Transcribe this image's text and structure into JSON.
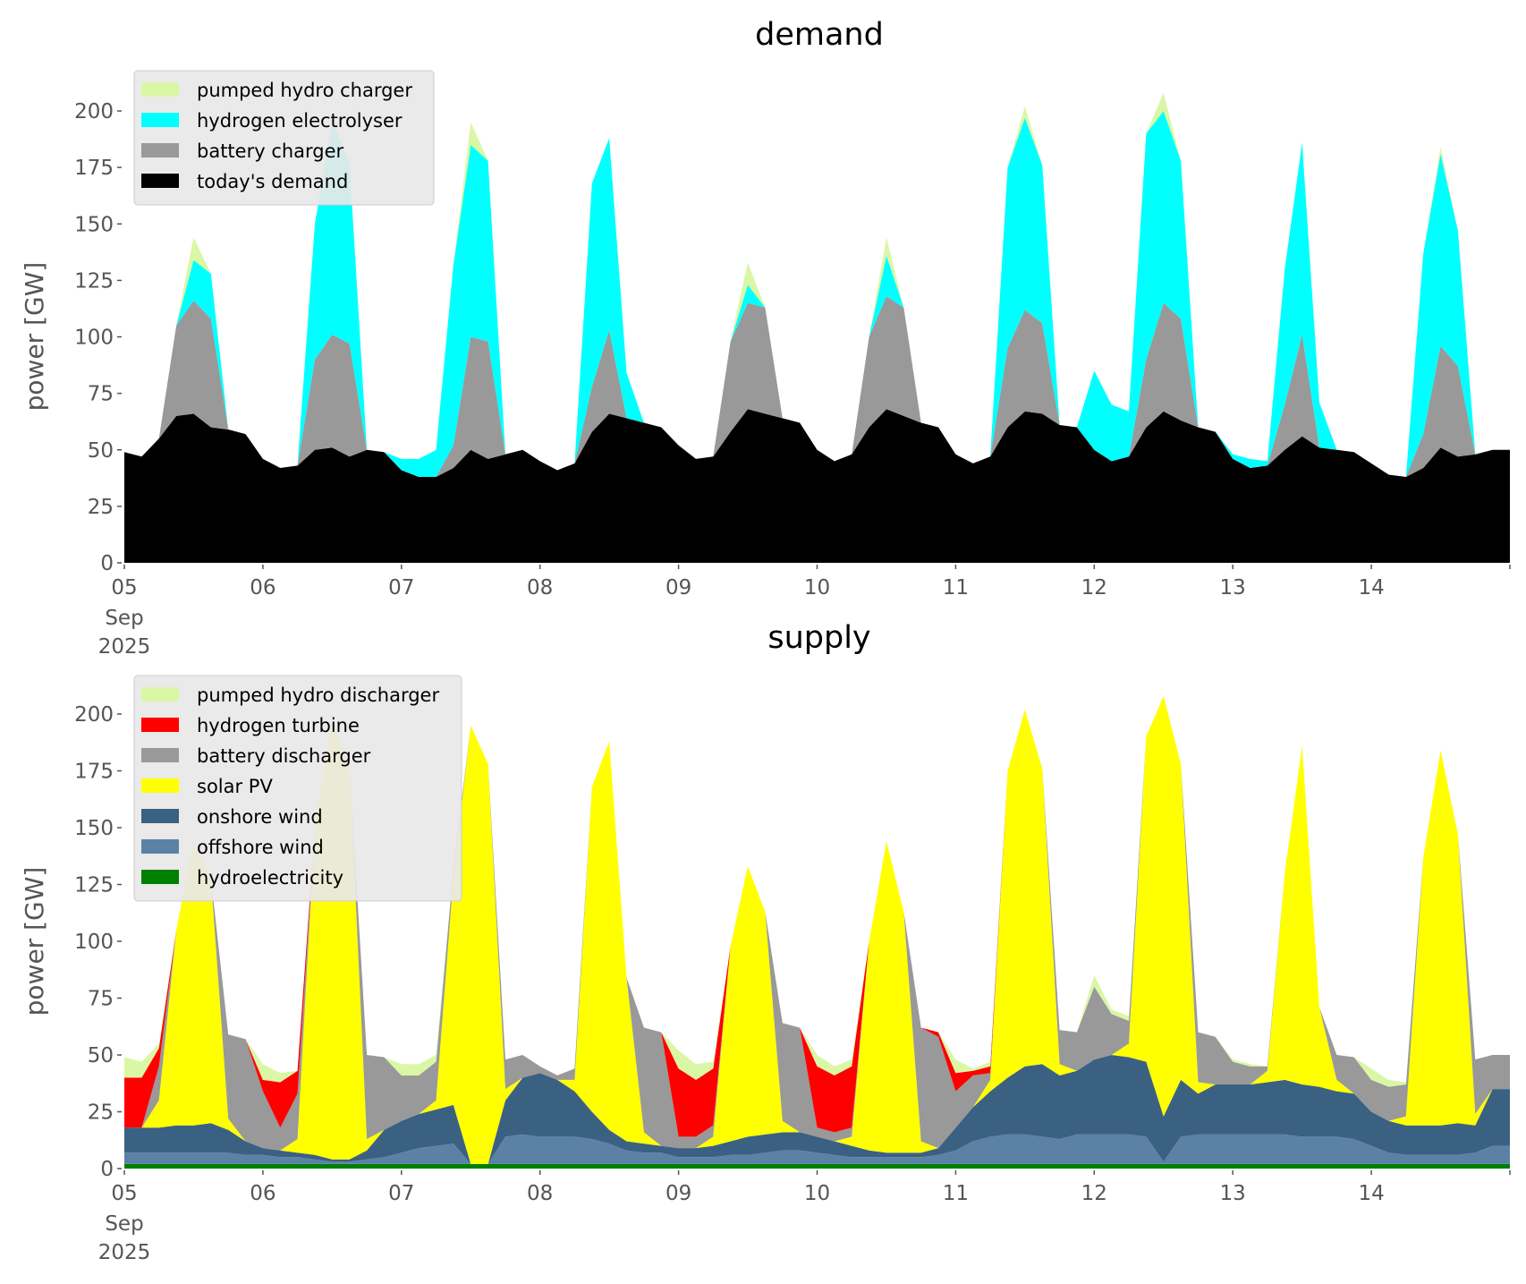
{
  "chart_data": [
    {
      "type": "area",
      "stacked": true,
      "title": "demand",
      "ylabel": "power [GW]",
      "xlabel": "",
      "ylim": [
        0,
        215
      ],
      "yticks": [
        0,
        25,
        50,
        75,
        100,
        125,
        150,
        175,
        200
      ],
      "xticks": [
        "05",
        "06",
        "07",
        "08",
        "09",
        "10",
        "11",
        "12",
        "13",
        "14"
      ],
      "xtick_sub": [
        "Sep",
        "2025"
      ],
      "start": "2025-09-05 00:00",
      "step_hours": 3,
      "legend_position": "top-left",
      "series": [
        {
          "name": "today's demand",
          "color": "#000000",
          "values": [
            49,
            47,
            55,
            65,
            66,
            60,
            59,
            57,
            46,
            42,
            43,
            50,
            51,
            47,
            50,
            49,
            41,
            38,
            38,
            42,
            50,
            46,
            48,
            50,
            45,
            41,
            44,
            58,
            66,
            64,
            62,
            60,
            52,
            46,
            47,
            58,
            68,
            66,
            64,
            62,
            50,
            45,
            48,
            60,
            68,
            65,
            62,
            60,
            48,
            44,
            47,
            60,
            67,
            66,
            61,
            60,
            50,
            45,
            47,
            60,
            67,
            63,
            60,
            58,
            46,
            42,
            43,
            50,
            56,
            51,
            50,
            49,
            44,
            39,
            38,
            42,
            51,
            47,
            48,
            50
          ]
        },
        {
          "name": "battery charger",
          "color": "#999999",
          "values": [
            0,
            0,
            0,
            40,
            50,
            48,
            0,
            0,
            0,
            0,
            0,
            40,
            50,
            50,
            0,
            0,
            0,
            0,
            0,
            10,
            50,
            52,
            0,
            0,
            0,
            0,
            0,
            20,
            37,
            0,
            0,
            0,
            0,
            0,
            0,
            40,
            47,
            47,
            0,
            0,
            0,
            0,
            0,
            40,
            50,
            48,
            0,
            0,
            0,
            0,
            0,
            35,
            45,
            40,
            0,
            0,
            0,
            0,
            0,
            30,
            48,
            45,
            0,
            0,
            0,
            0,
            0,
            20,
            45,
            0,
            0,
            0,
            0,
            0,
            0,
            15,
            45,
            40,
            0,
            0
          ]
        },
        {
          "name": "hydrogen electrolyser",
          "color": "#00ffff",
          "values": [
            0,
            0,
            0,
            0,
            18,
            20,
            0,
            0,
            0,
            0,
            0,
            60,
            95,
            80,
            0,
            0,
            5,
            8,
            12,
            80,
            85,
            80,
            0,
            0,
            0,
            0,
            0,
            90,
            85,
            20,
            0,
            0,
            0,
            0,
            0,
            0,
            8,
            0,
            0,
            0,
            0,
            0,
            0,
            0,
            18,
            0,
            0,
            0,
            0,
            0,
            0,
            80,
            85,
            70,
            0,
            0,
            35,
            25,
            20,
            100,
            85,
            70,
            0,
            0,
            2,
            4,
            2,
            60,
            85,
            20,
            0,
            0,
            0,
            0,
            0,
            80,
            85,
            60,
            0,
            0
          ]
        },
        {
          "name": "pumped hydro charger",
          "color": "#daf7a6",
          "values": [
            0,
            0,
            0,
            0,
            10,
            0,
            0,
            0,
            0,
            0,
            0,
            0,
            2,
            0,
            0,
            0,
            0,
            0,
            0,
            0,
            10,
            0,
            0,
            0,
            0,
            0,
            0,
            0,
            0,
            0,
            0,
            0,
            0,
            0,
            0,
            0,
            10,
            0,
            0,
            0,
            0,
            0,
            0,
            0,
            8,
            0,
            0,
            0,
            0,
            0,
            0,
            0,
            5,
            0,
            0,
            0,
            0,
            0,
            0,
            0,
            8,
            0,
            0,
            0,
            0,
            0,
            0,
            0,
            0,
            0,
            0,
            0,
            0,
            0,
            0,
            0,
            3,
            0,
            0,
            0
          ]
        }
      ]
    },
    {
      "type": "area",
      "stacked": true,
      "title": "supply",
      "ylabel": "power [GW]",
      "xlabel": "",
      "ylim": [
        0,
        215
      ],
      "yticks": [
        0,
        25,
        50,
        75,
        100,
        125,
        150,
        175,
        200
      ],
      "xticks": [
        "05",
        "06",
        "07",
        "08",
        "09",
        "10",
        "11",
        "12",
        "13",
        "14"
      ],
      "xtick_sub": [
        "Sep",
        "2025"
      ],
      "start": "2025-09-05 00:00",
      "step_hours": 3,
      "legend_position": "top-left",
      "series": [
        {
          "name": "hydroelectricity",
          "color": "#008000",
          "values": [
            2,
            2,
            2,
            2,
            2,
            2,
            2,
            2,
            2,
            2,
            2,
            2,
            2,
            2,
            2,
            2,
            2,
            2,
            2,
            2,
            2,
            2,
            2,
            2,
            2,
            2,
            2,
            2,
            2,
            2,
            2,
            2,
            2,
            2,
            2,
            2,
            2,
            2,
            2,
            2,
            2,
            2,
            2,
            2,
            2,
            2,
            2,
            2,
            2,
            2,
            2,
            2,
            2,
            2,
            2,
            2,
            2,
            2,
            2,
            2,
            2,
            2,
            2,
            2,
            2,
            2,
            2,
            2,
            2,
            2,
            2,
            2,
            2,
            2,
            2,
            2,
            2,
            2,
            2,
            2
          ]
        },
        {
          "name": "offshore wind",
          "color": "#5b82a5",
          "values": [
            5,
            5,
            5,
            5,
            5,
            5,
            5,
            4,
            4,
            3,
            3,
            2,
            1,
            1,
            2,
            3,
            5,
            7,
            8,
            9,
            0,
            0,
            12,
            13,
            12,
            12,
            12,
            11,
            9,
            6,
            5,
            5,
            3,
            3,
            3,
            4,
            4,
            5,
            6,
            6,
            5,
            4,
            3,
            3,
            3,
            3,
            3,
            4,
            6,
            10,
            12,
            13,
            13,
            12,
            11,
            13,
            13,
            13,
            13,
            12,
            1,
            12,
            13,
            13,
            13,
            13,
            13,
            13,
            12,
            12,
            12,
            11,
            8,
            5,
            4,
            4,
            4,
            4,
            5,
            8
          ]
        },
        {
          "name": "onshore wind",
          "color": "#3b6182",
          "values": [
            11,
            11,
            11,
            12,
            12,
            13,
            10,
            6,
            3,
            3,
            2,
            2,
            1,
            1,
            4,
            12,
            14,
            15,
            16,
            17,
            0,
            0,
            16,
            25,
            28,
            25,
            20,
            12,
            6,
            4,
            4,
            3,
            4,
            4,
            5,
            6,
            8,
            8,
            8,
            8,
            7,
            6,
            5,
            3,
            2,
            2,
            2,
            3,
            10,
            15,
            20,
            25,
            30,
            32,
            28,
            28,
            33,
            35,
            34,
            33,
            20,
            25,
            18,
            22,
            22,
            22,
            23,
            24,
            23,
            22,
            20,
            20,
            15,
            14,
            13,
            13,
            13,
            14,
            12,
            25
          ]
        },
        {
          "name": "solar PV",
          "color": "#ffff00",
          "values": [
            0,
            0,
            12,
            86,
            125,
            108,
            5,
            0,
            0,
            0,
            6,
            144,
            194,
            173,
            5,
            0,
            0,
            0,
            4,
            100,
            193,
            176,
            5,
            0,
            0,
            0,
            5,
            143,
            171,
            72,
            5,
            0,
            0,
            0,
            4,
            86,
            119,
            98,
            5,
            0,
            0,
            0,
            4,
            92,
            137,
            106,
            5,
            0,
            0,
            0,
            5,
            135,
            157,
            130,
            5,
            0,
            0,
            0,
            6,
            143,
            185,
            139,
            5,
            0,
            0,
            0,
            5,
            91,
            149,
            35,
            5,
            0,
            0,
            0,
            4,
            118,
            165,
            127,
            5,
            0
          ]
        },
        {
          "name": "battery discharger",
          "color": "#999999",
          "values": [
            0,
            0,
            15,
            0,
            0,
            0,
            37,
            45,
            25,
            10,
            20,
            0,
            0,
            0,
            37,
            32,
            20,
            17,
            17,
            4,
            0,
            0,
            13,
            10,
            3,
            2,
            5,
            0,
            0,
            0,
            46,
            50,
            5,
            5,
            5,
            0,
            0,
            0,
            43,
            46,
            4,
            4,
            4,
            0,
            0,
            0,
            50,
            49,
            16,
            14,
            3,
            0,
            0,
            0,
            15,
            17,
            32,
            18,
            10,
            0,
            0,
            0,
            22,
            21,
            10,
            8,
            2,
            0,
            0,
            0,
            11,
            16,
            14,
            15,
            14,
            0,
            0,
            0,
            24,
            15
          ]
        },
        {
          "name": "hydrogen turbine",
          "color": "#ff0000",
          "values": [
            22,
            22,
            8,
            0,
            0,
            0,
            0,
            0,
            5,
            20,
            10,
            0,
            0,
            0,
            0,
            0,
            0,
            0,
            0,
            0,
            0,
            0,
            0,
            0,
            0,
            0,
            0,
            0,
            0,
            0,
            0,
            0,
            30,
            25,
            25,
            0,
            0,
            0,
            0,
            0,
            27,
            25,
            27,
            0,
            0,
            0,
            0,
            2,
            8,
            2,
            3,
            0,
            0,
            0,
            0,
            0,
            0,
            0,
            0,
            0,
            0,
            0,
            0,
            0,
            0,
            0,
            0,
            0,
            0,
            0,
            0,
            0,
            0,
            0,
            0,
            0,
            0,
            0,
            0,
            0
          ]
        },
        {
          "name": "pumped hydro discharger",
          "color": "#daf7a6",
          "values": [
            9,
            7,
            2,
            0,
            0,
            0,
            0,
            0,
            7,
            4,
            0,
            0,
            0,
            0,
            0,
            0,
            5,
            5,
            3,
            0,
            0,
            0,
            0,
            0,
            0,
            0,
            0,
            0,
            0,
            0,
            0,
            0,
            8,
            7,
            3,
            0,
            0,
            0,
            0,
            0,
            5,
            4,
            3,
            0,
            0,
            0,
            0,
            0,
            6,
            1,
            2,
            0,
            0,
            0,
            0,
            0,
            5,
            2,
            2,
            0,
            0,
            0,
            0,
            0,
            1,
            1,
            0,
            0,
            0,
            0,
            0,
            0,
            5,
            3,
            1,
            0,
            0,
            0,
            0,
            0
          ]
        }
      ]
    }
  ]
}
